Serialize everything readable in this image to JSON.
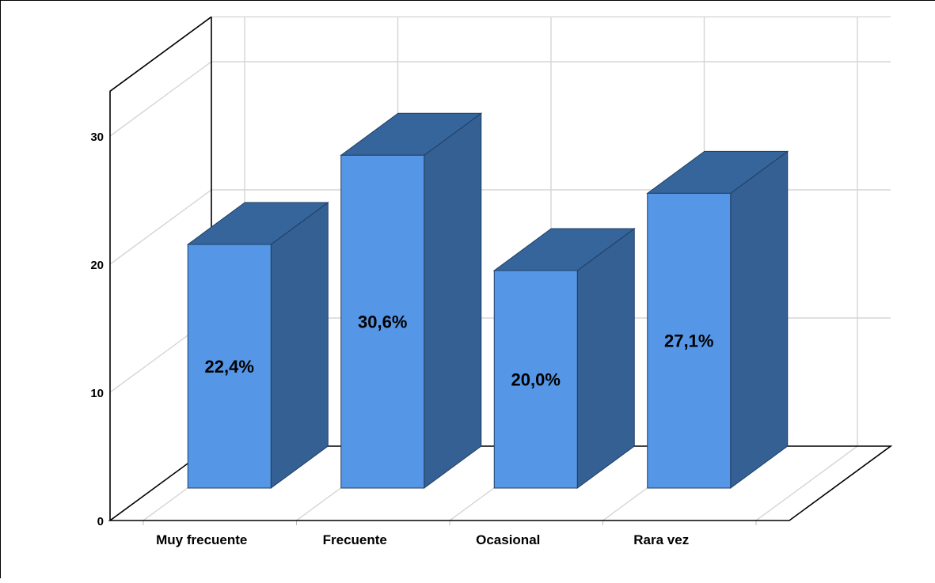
{
  "chart_data": {
    "type": "bar",
    "title": "",
    "xlabel": "",
    "ylabel": "",
    "categories": [
      "Muy frecuente",
      "Frecuente",
      "Ocasional",
      "Rara vez"
    ],
    "values": [
      22.4,
      30.6,
      20.0,
      27.1
    ],
    "data_labels": [
      "22,4%",
      "30,6%",
      "20,0%",
      "27,1%"
    ],
    "y_ticks": [
      "0",
      "10",
      "20",
      "30"
    ],
    "ylim": [
      0,
      30
    ],
    "grid": true,
    "three_d": true,
    "colors": {
      "bar_front": "#5596e6",
      "bar_side": "#346094",
      "bar_top": "#36659b",
      "bar_edge": "#1f3e63",
      "grid": "#d6d6d6",
      "axis": "#000000"
    }
  }
}
